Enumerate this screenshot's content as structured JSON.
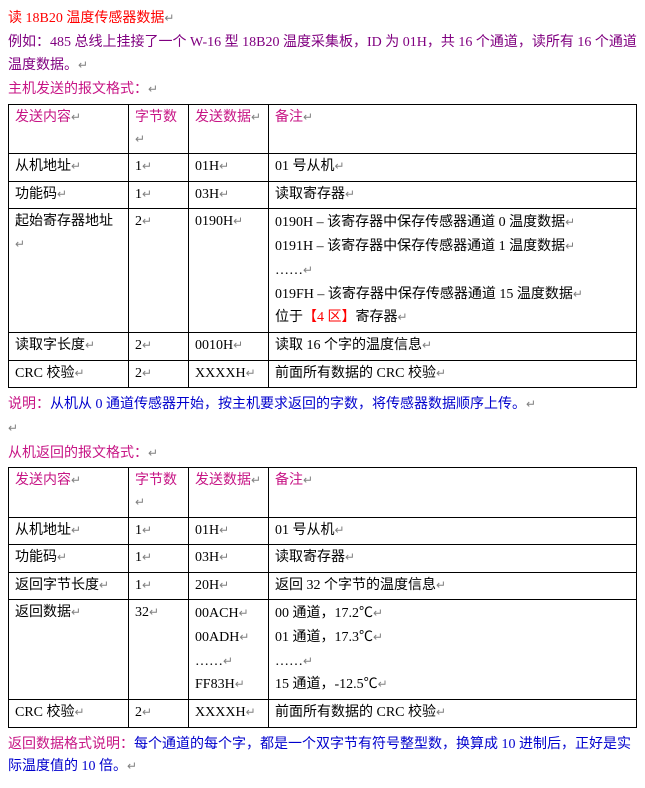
{
  "title": "读 18B20 温度传感器数据",
  "ret": "↵",
  "example_prefix": "例如：",
  "example_text": "485 总线上挂接了一个 W-16 型 18B20 温度采集板，ID 为 01H，共 16 个通道，读所有 16 个通道温度数据。",
  "section1_label": "主机发送的报文格式：",
  "headers": {
    "c1": "发送内容",
    "c2": "字节数",
    "c3": "发送数据",
    "c4": "备注"
  },
  "table1": {
    "r1": {
      "a": "从机地址",
      "b": "1",
      "c": "01H",
      "d": "01 号从机"
    },
    "r2": {
      "a": "功能码",
      "b": "1",
      "c": "03H",
      "d": "读取寄存器"
    },
    "r3": {
      "a": "起始寄存器地址",
      "b": "2",
      "c": "0190H",
      "d1": "0190H – 该寄存器中保存传感器通道 0 温度数据",
      "d2": "0191H – 该寄存器中保存传感器通道 1 温度数据",
      "d3": "……",
      "d4": "019FH – 该寄存器中保存传感器通道 15 温度数据",
      "d5a": "位于",
      "d5b": "【4 区】",
      "d5c": "寄存器"
    },
    "r4": {
      "a": "读取字长度",
      "b": "2",
      "c": "0010H",
      "d": "读取 16 个字的温度信息"
    },
    "r5": {
      "a": "CRC 校验",
      "b": "2",
      "c": "XXXXH",
      "d": "前面所有数据的 CRC 校验"
    }
  },
  "note1_label": "说明：",
  "note1_text": "从机从 0 通道传感器开始，按主机要求返回的字数，将传感器数据顺序上传。",
  "section2_label": "从机返回的报文格式：",
  "table2": {
    "r1": {
      "a": "从机地址",
      "b": "1",
      "c": "01H",
      "d": "01 号从机"
    },
    "r2": {
      "a": "功能码",
      "b": "1",
      "c": "03H",
      "d": "读取寄存器"
    },
    "r3": {
      "a": "返回字节长度",
      "b": "1",
      "c": "20H",
      "d": "返回 32 个字节的温度信息"
    },
    "r4": {
      "a": "返回数据",
      "b": "32",
      "c1": "00ACH",
      "c2": "00ADH",
      "c3": "……",
      "c4": "FF83H",
      "d1": "00 通道，17.2℃",
      "d2": "01 通道，17.3℃",
      "d3": "……",
      "d4": "15 通道，-12.5℃"
    },
    "r5": {
      "a": "CRC 校验",
      "b": "2",
      "c": "XXXXH",
      "d": "前面所有数据的 CRC 校验"
    }
  },
  "note2_label": "返回数据格式说明：",
  "note2_text": "每个通道的每个字，都是一个双字节有符号整型数，换算成 10 进制后，正好是实际温度值的 10 倍。"
}
